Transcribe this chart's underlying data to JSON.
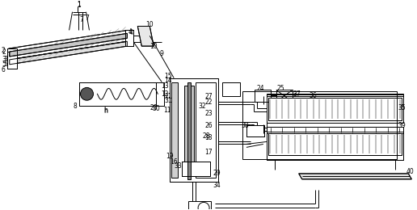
{
  "bg_color": "#ffffff",
  "lc": "#000000",
  "lw": 0.7,
  "fig_width": 5.16,
  "fig_height": 2.6,
  "dpi": 100
}
